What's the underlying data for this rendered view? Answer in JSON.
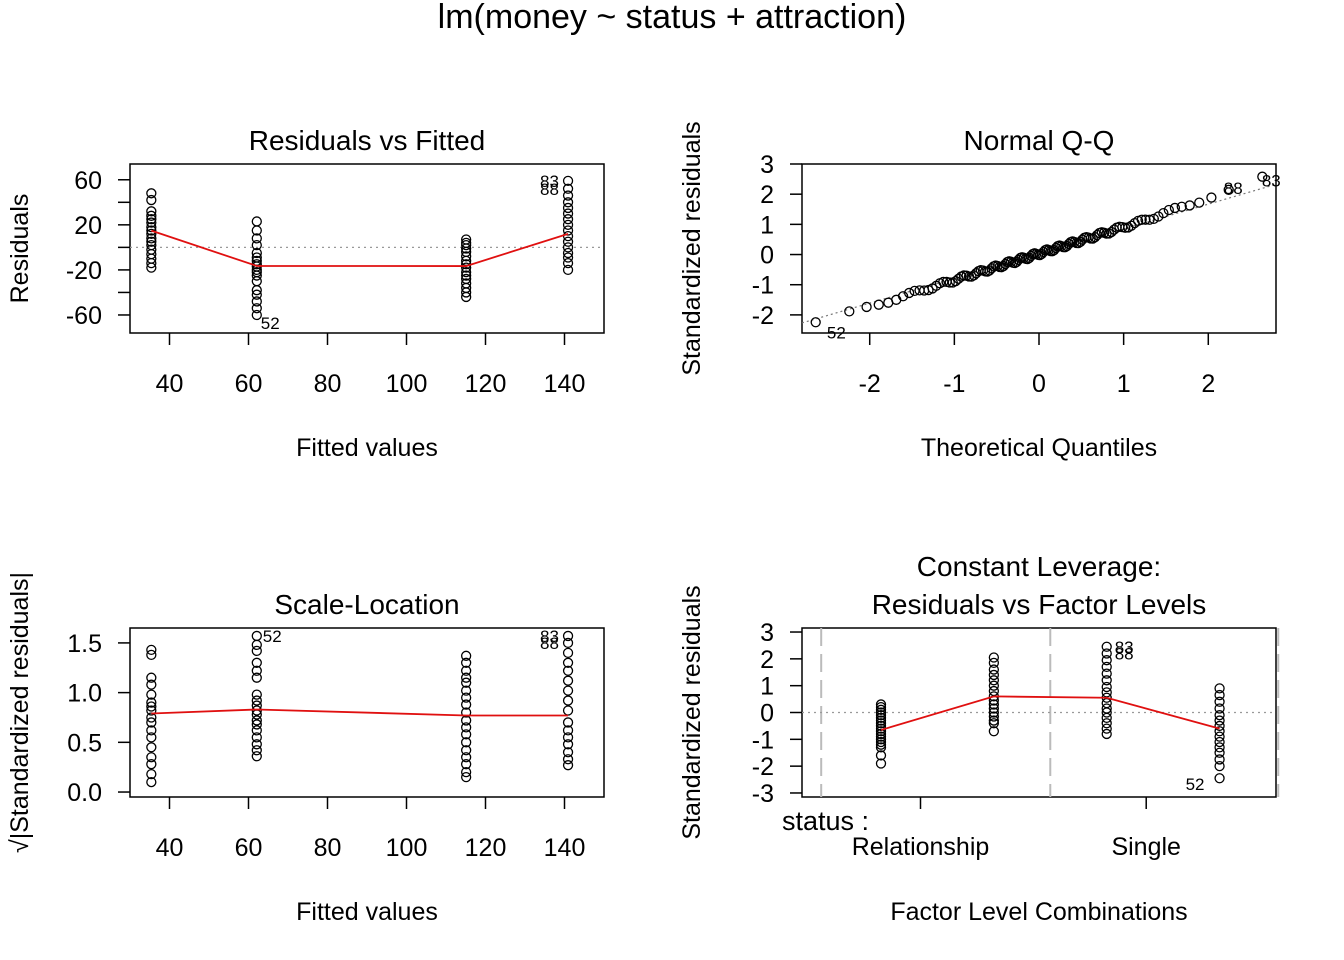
{
  "figure": {
    "title": "lm(money ~ status + attraction)"
  },
  "chart_data": [
    {
      "type": "scatter",
      "panel": "residuals_vs_fitted",
      "title": "Residuals vs Fitted",
      "xlabel": "Fitted values",
      "ylabel": "Residuals",
      "xlim": [
        30,
        150
      ],
      "ylim": [
        -76,
        74
      ],
      "xticks": [
        40,
        60,
        80,
        100,
        120,
        140
      ],
      "yticks_labeled": [
        -60,
        -20,
        20,
        60
      ],
      "yticks_minor": [
        -40,
        0,
        40
      ],
      "reference_line": 0,
      "groups": [
        {
          "x": 35.4,
          "y": [
            48,
            42,
            32,
            28,
            25,
            22,
            18,
            15,
            12,
            8,
            5,
            2,
            -2,
            -6,
            -10,
            -14,
            -18
          ]
        },
        {
          "x": 62.1,
          "y": [
            23,
            15,
            8,
            2,
            -5,
            -9,
            -12,
            -15,
            -17,
            -20,
            -22,
            -25,
            -30,
            -38,
            -42,
            -48,
            -54,
            -60
          ]
        },
        {
          "x": 115.1,
          "y": [
            7,
            4,
            2,
            -1,
            -4,
            -8,
            -12,
            -15,
            -18,
            -22,
            -25,
            -28,
            -32,
            -36,
            -40,
            -44
          ]
        },
        {
          "x": 140.9,
          "y": [
            59,
            52,
            46,
            40,
            35,
            30,
            25,
            20,
            15,
            10,
            5,
            0,
            -5,
            -9,
            -14,
            -20
          ]
        }
      ],
      "smooth": {
        "x": [
          35.4,
          62.1,
          115.1,
          140.9
        ],
        "y": [
          14.9,
          -16.5,
          -16.6,
          12.0
        ]
      },
      "labels": [
        {
          "text": "83",
          "x": 140.9,
          "y": 59
        },
        {
          "text": "88",
          "x": 140.9,
          "y": 52
        },
        {
          "text": "52",
          "x": 62.1,
          "y": -60
        }
      ]
    },
    {
      "type": "scatter",
      "panel": "normal_qq",
      "title": "Normal Q-Q",
      "xlabel": "Theoretical Quantiles",
      "ylabel": "Standardized residuals",
      "xlim": [
        -2.8,
        2.8
      ],
      "ylim": [
        -2.6,
        3.0
      ],
      "xticks": [
        -2,
        -1,
        0,
        1,
        2
      ],
      "yticks": [
        -2,
        -1,
        0,
        1,
        2,
        3
      ],
      "n_points": 120,
      "reference_line": {
        "intercept": 0.03,
        "slope": 0.82
      },
      "labels": [
        {
          "text": "52",
          "x": -2.6,
          "y": -2.45
        },
        {
          "text": "88",
          "x": 2.1,
          "y": 2.2
        },
        {
          "text": "83",
          "x": 2.55,
          "y": 2.45
        }
      ]
    },
    {
      "type": "scatter",
      "panel": "scale_location",
      "title": "Scale-Location",
      "xlabel": "Fitted values",
      "ylabel": "√|Standardized residuals|",
      "xlim": [
        30,
        150
      ],
      "ylim": [
        -0.05,
        1.65
      ],
      "xticks": [
        40,
        60,
        80,
        100,
        120,
        140
      ],
      "yticks": [
        "0.0",
        "0.5",
        "1.0",
        "1.5"
      ],
      "ytick_values": [
        0,
        0.5,
        1.0,
        1.5
      ],
      "groups": [
        {
          "x": 35.4,
          "y": [
            1.43,
            1.38,
            1.15,
            1.08,
            0.98,
            0.9,
            0.86,
            0.82,
            0.75,
            0.7,
            0.62,
            0.55,
            0.45,
            0.35,
            0.28,
            0.18,
            0.1
          ]
        },
        {
          "x": 62.1,
          "y": [
            1.57,
            1.48,
            1.42,
            1.3,
            1.22,
            1.15,
            0.98,
            0.92,
            0.87,
            0.82,
            0.78,
            0.72,
            0.68,
            0.62,
            0.55,
            0.48,
            0.42,
            0.36
          ]
        },
        {
          "x": 115.1,
          "y": [
            1.37,
            1.3,
            1.22,
            1.15,
            1.1,
            1.02,
            0.95,
            0.88,
            0.8,
            0.72,
            0.65,
            0.58,
            0.5,
            0.42,
            0.35,
            0.28,
            0.2,
            0.15
          ]
        },
        {
          "x": 140.9,
          "y": [
            1.57,
            1.5,
            1.4,
            1.3,
            1.22,
            1.12,
            1.02,
            0.92,
            0.82,
            0.7,
            0.62,
            0.55,
            0.48,
            0.4,
            0.33,
            0.27
          ]
        }
      ],
      "smooth": {
        "x": [
          35.4,
          62.1,
          115.1,
          140.9
        ],
        "y": [
          0.79,
          0.83,
          0.77,
          0.77
        ]
      },
      "labels": [
        {
          "text": "52",
          "x": 62.1,
          "y": 1.57
        },
        {
          "text": "83",
          "x": 140.9,
          "y": 1.57
        },
        {
          "text": "88",
          "x": 140.9,
          "y": 1.5
        }
      ]
    },
    {
      "type": "scatter",
      "panel": "constant_leverage",
      "title": [
        "Constant Leverage:",
        "Residuals vs Factor Levels"
      ],
      "xlabel": "Factor Level Combinations",
      "ylabel": "Standardized residuals",
      "xlim": [
        0,
        4.2
      ],
      "ylim": [
        -3.15,
        3.15
      ],
      "yticks": [
        -3,
        -2,
        -1,
        0,
        1,
        2,
        3
      ],
      "factor_name": "status :",
      "factor_levels": [
        "Relationship",
        "Single"
      ],
      "factor_positions": [
        1.05,
        3.05
      ],
      "factor_boundaries": [
        0.17,
        2.2,
        4.22
      ],
      "groups": [
        {
          "x": 0.7,
          "y": [
            0.3,
            0.2,
            0.1,
            0.0,
            -0.1,
            -0.2,
            -0.3,
            -0.4,
            -0.5,
            -0.6,
            -0.7,
            -0.8,
            -0.9,
            -1.0,
            -1.1,
            -1.2,
            -1.3,
            -1.6,
            -1.9
          ]
        },
        {
          "x": 1.7,
          "y": [
            2.05,
            1.85,
            1.6,
            1.4,
            1.2,
            1.0,
            0.8,
            0.6,
            0.45,
            0.3,
            0.15,
            0.0,
            -0.15,
            -0.3,
            -0.4,
            -0.7
          ]
        },
        {
          "x": 2.7,
          "y": [
            2.45,
            2.2,
            1.95,
            1.7,
            1.45,
            1.2,
            0.95,
            0.75,
            0.55,
            0.35,
            0.15,
            0.0,
            -0.2,
            -0.4,
            -0.6,
            -0.8
          ]
        },
        {
          "x": 3.7,
          "y": [
            0.9,
            0.65,
            0.4,
            0.15,
            -0.1,
            -0.3,
            -0.5,
            -0.7,
            -0.9,
            -1.1,
            -1.3,
            -1.5,
            -1.75,
            -2.0,
            -2.45
          ]
        }
      ],
      "smooth": {
        "x": [
          0.7,
          1.7,
          2.7,
          3.7
        ],
        "y": [
          -0.65,
          0.6,
          0.55,
          -0.6
        ]
      },
      "labels": [
        {
          "text": "83",
          "x": 2.7,
          "y": 2.45
        },
        {
          "text": "88",
          "x": 2.7,
          "y": 2.2
        },
        {
          "text": "52",
          "x": 3.7,
          "y": -2.45
        }
      ]
    }
  ]
}
